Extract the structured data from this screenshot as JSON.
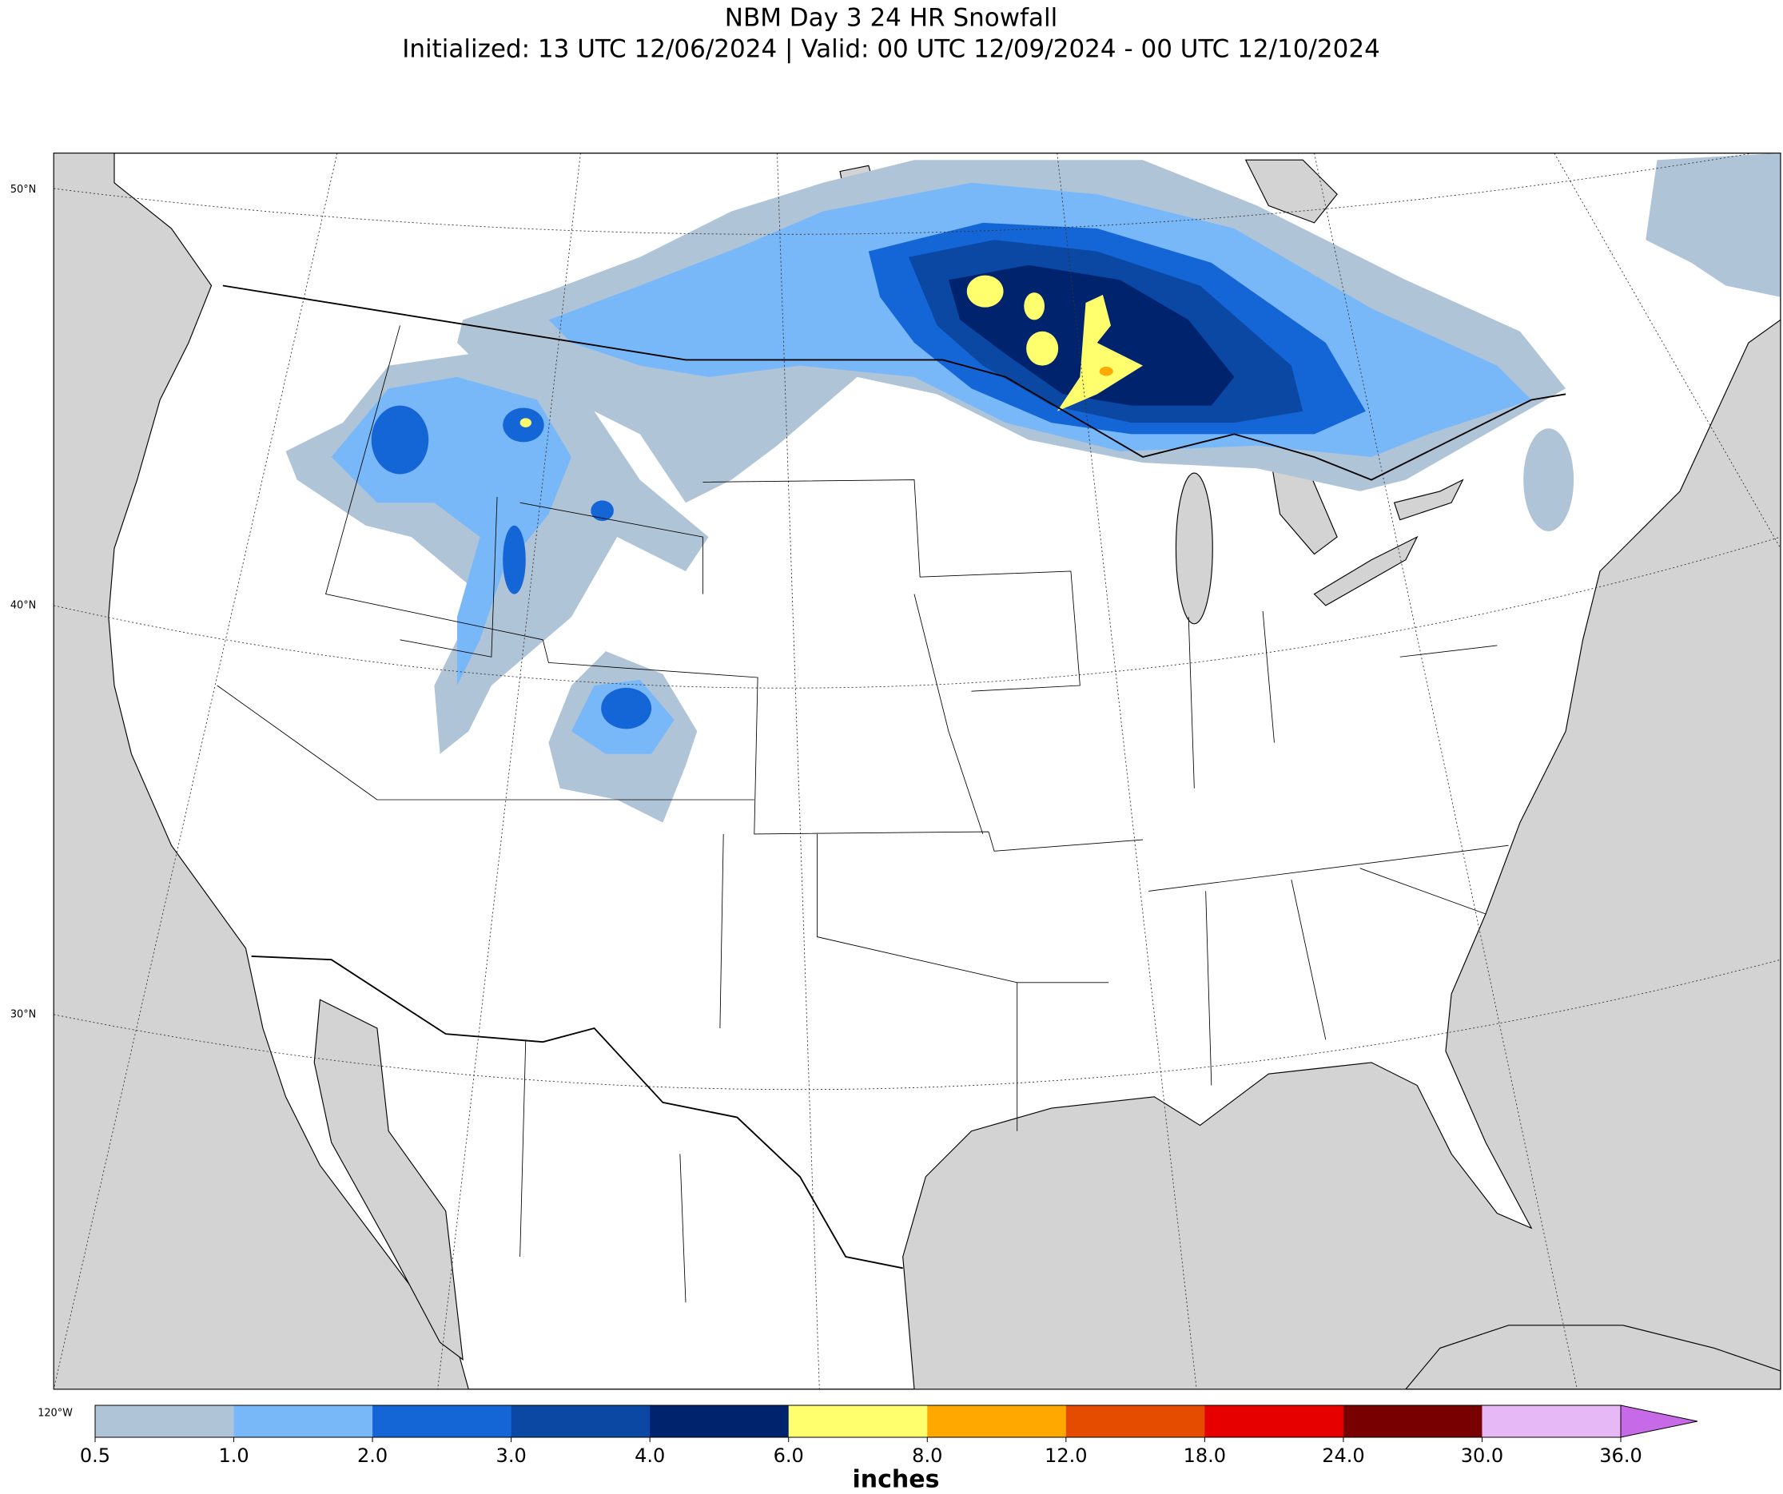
{
  "header": {
    "title": "NBM Day 3 24 HR Snowfall",
    "subtitle": "Initialized: 13 UTC 12/06/2024 | Valid: 00 UTC 12/09/2024 - 00 UTC 12/10/2024"
  },
  "map": {
    "lat_labels": [
      "50°N",
      "40°N",
      "30°N"
    ],
    "lon_label": "120°W",
    "land_color": "#ffffff",
    "water_color": "#d3d3d3"
  },
  "colorbar": {
    "ticks": [
      "0.5",
      "1.0",
      "2.0",
      "3.0",
      "4.0",
      "6.0",
      "8.0",
      "12.0",
      "18.0",
      "24.0",
      "30.0",
      "36.0"
    ],
    "colors": [
      "#b0c4d8",
      "#78b8f8",
      "#1466d6",
      "#0a48a4",
      "#00236e",
      "#ffff6e",
      "#ffa800",
      "#e64c00",
      "#e60000",
      "#780000",
      "#e6b8f5"
    ],
    "extend_color": "#c66ae8",
    "unit": "inches"
  }
}
